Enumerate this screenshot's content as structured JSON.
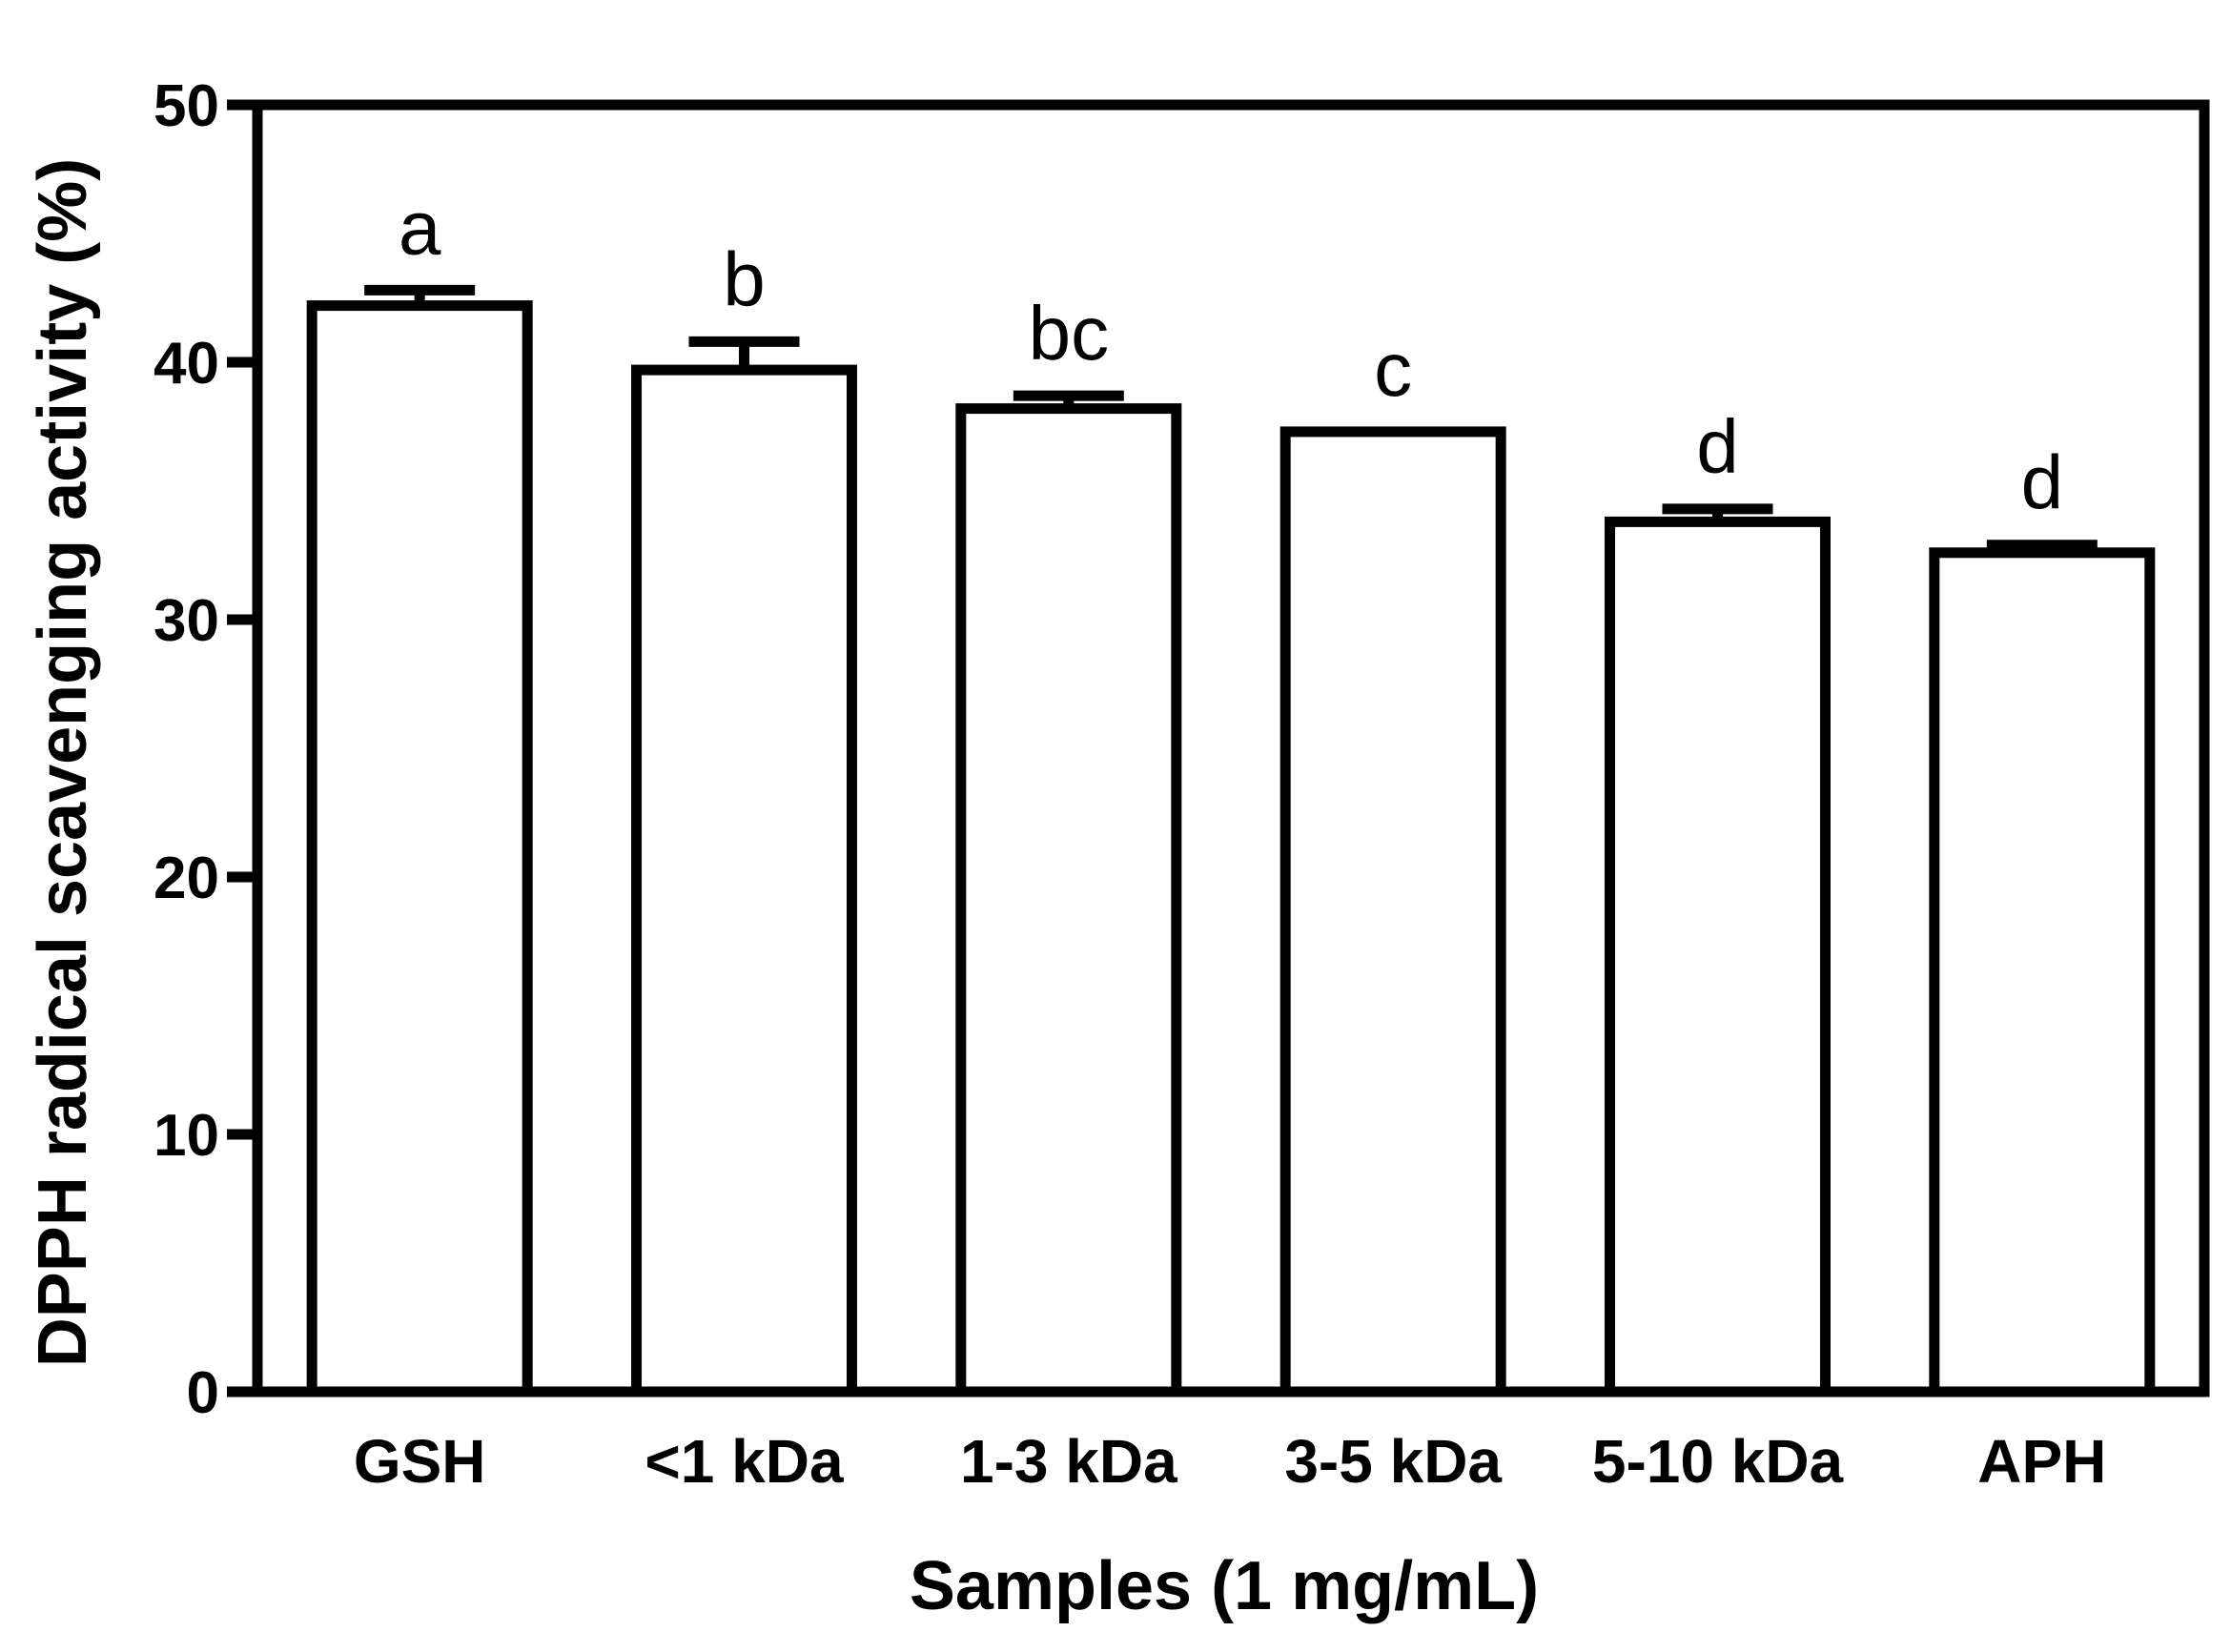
{
  "chart_data": {
    "type": "bar",
    "title": "",
    "xlabel": "Samples (1 mg/mL)",
    "ylabel": "DPPH radical scavenging activity (%)",
    "ylim": [
      0,
      50
    ],
    "yticks": [
      0,
      10,
      20,
      30,
      40,
      50
    ],
    "grid": false,
    "legend": "none",
    "categories": [
      "GSH",
      "<1 kDa",
      "1-3 kDa",
      "3-5 kDa",
      "5-10 kDa",
      "APH"
    ],
    "values": [
      42.2,
      39.7,
      38.2,
      37.3,
      33.8,
      32.6
    ],
    "errors": [
      0.6,
      1.1,
      0.5,
      0.0,
      0.5,
      0.3
    ],
    "significance_letters": [
      "a",
      "b",
      "bc",
      "c",
      "d",
      "d"
    ],
    "colors": {
      "bar_fill": "#ffffff",
      "stroke": "#000000"
    }
  }
}
